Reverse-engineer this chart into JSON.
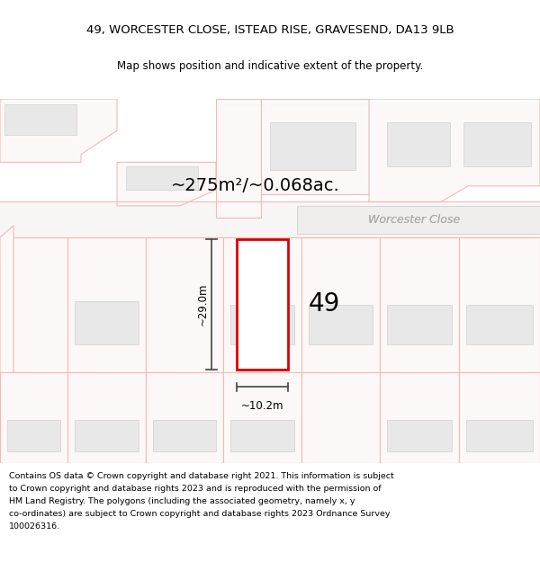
{
  "title_line1": "49, WORCESTER CLOSE, ISTEAD RISE, GRAVESEND, DA13 9LB",
  "title_line2": "Map shows position and indicative extent of the property.",
  "area_label": "~275m²/~0.068ac.",
  "street_label": "Worcester Close",
  "number_label": "49",
  "dim_height": "~29.0m",
  "dim_width": "~10.2m",
  "bg_color": "#ffffff",
  "map_bg": "#ffffff",
  "boundary_color": "#f5b8b8",
  "highlight_color": "#dd0000",
  "building_color": "#d0d0d0",
  "building_face": "#e8e8e8",
  "dim_line_color": "#444444",
  "footer_lines": [
    "Contains OS data © Crown copyright and database right 2021. This information is subject",
    "to Crown copyright and database rights 2023 and is reproduced with the permission of",
    "HM Land Registry. The polygons (including the associated geometry, namely x, y",
    "co-ordinates) are subject to Crown copyright and database rights 2023 Ordnance Survey",
    "100026316."
  ]
}
